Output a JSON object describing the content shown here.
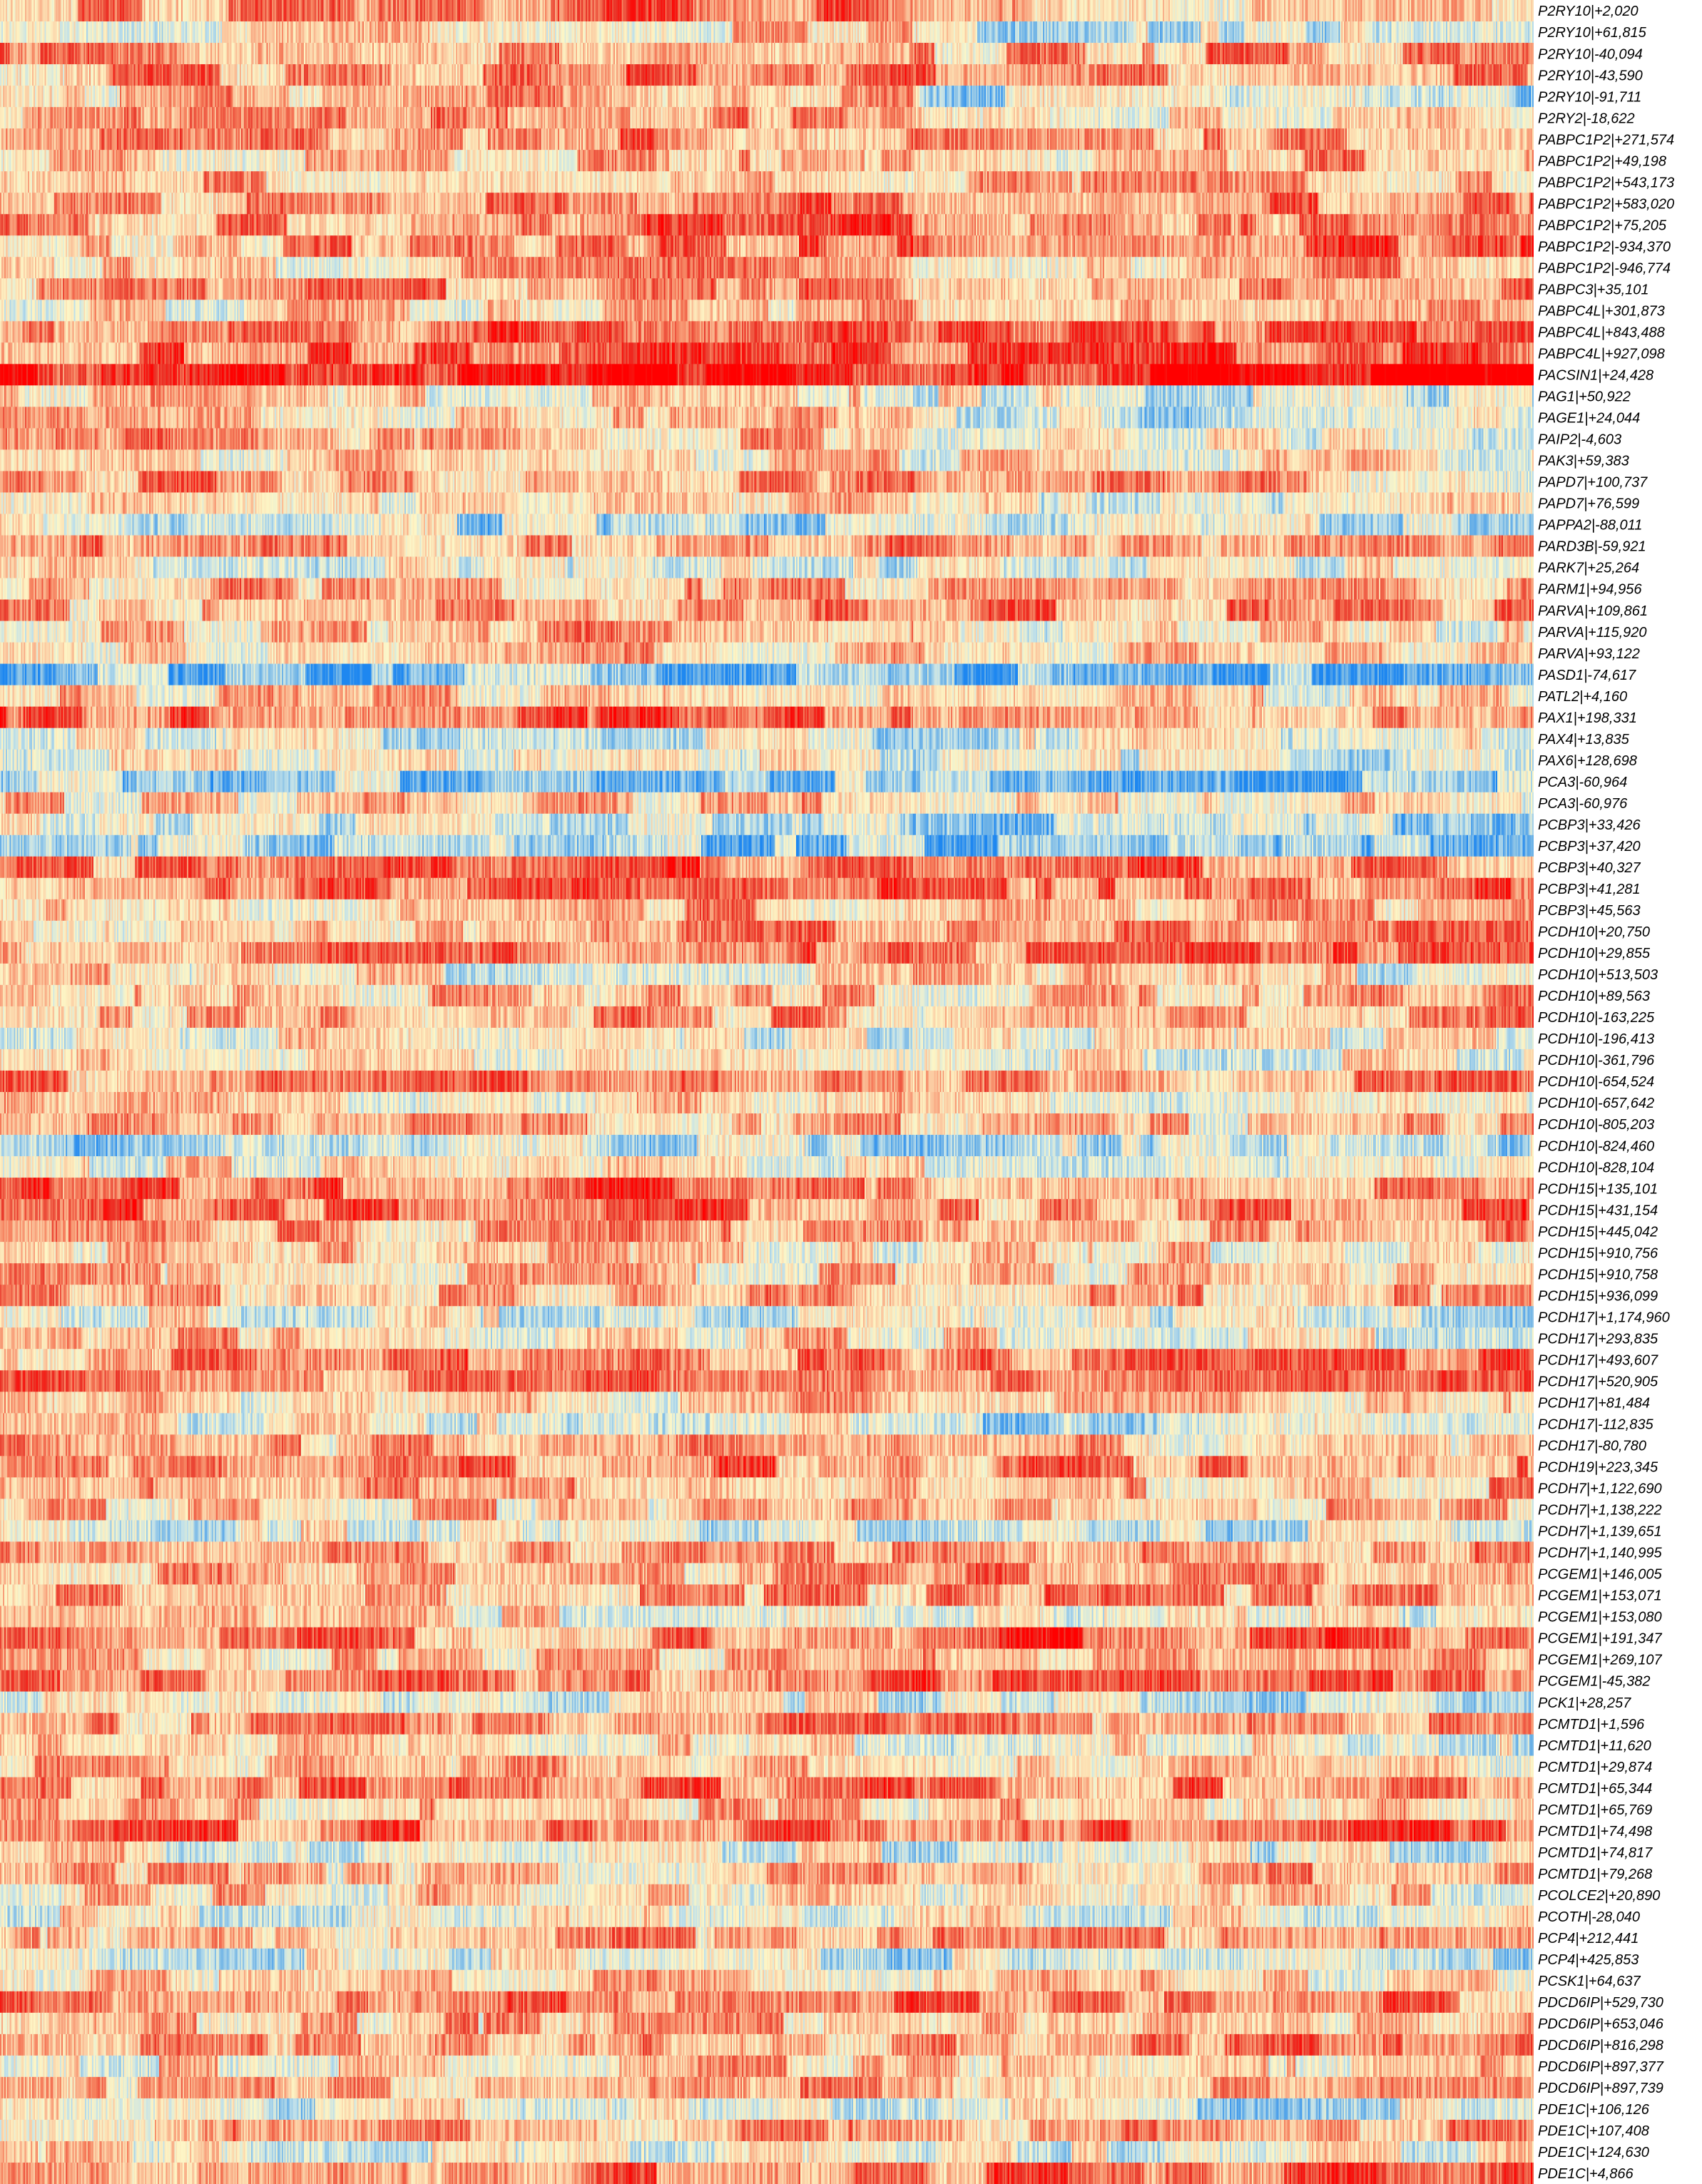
{
  "chart_data": {
    "type": "heatmap",
    "title": "",
    "xlabel": "",
    "ylabel": "",
    "colormap": [
      "#1e87f0",
      "#74b6e6",
      "#bfe0ea",
      "#fdf6c6",
      "#fbc9a0",
      "#f6805e",
      "#e9392c",
      "#ff0000"
    ],
    "value_range": [
      -1,
      1
    ],
    "n_columns": 1100,
    "column_groups": [
      0.5955,
      0.4045
    ],
    "rows": [
      {
        "label": "P2RY10|+2,020",
        "profile": [
          0.3,
          0.4,
          0.2,
          -0.1
        ]
      },
      {
        "label": "P2RY10|+61,815",
        "profile": [
          -0.2,
          0.1,
          -0.3,
          -0.2
        ]
      },
      {
        "label": "P2RY10|-40,094",
        "profile": [
          0.3,
          0.2,
          0.2,
          0.3
        ]
      },
      {
        "label": "P2RY10|-43,590",
        "profile": [
          0.2,
          0.5,
          0.3,
          0.4
        ]
      },
      {
        "label": "P2RY10|-91,711",
        "profile": [
          0.1,
          0.2,
          -0.3,
          -0.4
        ]
      },
      {
        "label": "P2RY2|-18,622",
        "profile": [
          0.2,
          0.3,
          0.1,
          -0.1
        ]
      },
      {
        "label": "PABPC1P2|+271,574",
        "profile": [
          0.2,
          0.4,
          0.3,
          0.4
        ]
      },
      {
        "label": "PABPC1P2|+49,198",
        "profile": [
          0.0,
          0.3,
          0.0,
          0.3
        ]
      },
      {
        "label": "PABPC1P2|+543,173",
        "profile": [
          0.2,
          0.1,
          0.2,
          0.2
        ]
      },
      {
        "label": "PABPC1P2|+583,020",
        "profile": [
          0.3,
          0.4,
          0.3,
          0.4
        ]
      },
      {
        "label": "PABPC1P2|+75,205",
        "profile": [
          0.2,
          0.6,
          0.2,
          0.5
        ]
      },
      {
        "label": "PABPC1P2|-934,370",
        "profile": [
          0.1,
          0.5,
          0.3,
          0.6
        ]
      },
      {
        "label": "PABPC1P2|-946,774",
        "profile": [
          0.0,
          0.3,
          0.0,
          0.2
        ]
      },
      {
        "label": "PABPC3|+35,101",
        "profile": [
          0.2,
          0.4,
          0.2,
          0.4
        ]
      },
      {
        "label": "PABPC4L|+301,873",
        "profile": [
          -0.1,
          0.2,
          0.0,
          0.2
        ]
      },
      {
        "label": "PABPC4L|+843,488",
        "profile": [
          0.4,
          0.5,
          0.5,
          0.6
        ]
      },
      {
        "label": "PABPC4L|+927,098",
        "profile": [
          0.4,
          0.6,
          0.5,
          0.7
        ]
      },
      {
        "label": "PACSIN1|+24,428",
        "profile": [
          0.8,
          0.9,
          0.8,
          0.9
        ]
      },
      {
        "label": "PAG1|+50,922",
        "profile": [
          0.1,
          0.0,
          -0.2,
          -0.3
        ]
      },
      {
        "label": "PAGE1|+24,044",
        "profile": [
          0.1,
          0.1,
          -0.3,
          -0.3
        ]
      },
      {
        "label": "PAIP2|-4,603",
        "profile": [
          0.3,
          0.1,
          0.0,
          -0.2
        ]
      },
      {
        "label": "PAK3|+59,383",
        "profile": [
          0.1,
          0.0,
          0.0,
          0.0
        ]
      },
      {
        "label": "PAPD7|+100,737",
        "profile": [
          0.3,
          0.2,
          0.2,
          0.1
        ]
      },
      {
        "label": "PAPD7|+76,599",
        "profile": [
          0.0,
          0.1,
          -0.1,
          -0.1
        ]
      },
      {
        "label": "PAPPA2|-88,011",
        "profile": [
          -0.3,
          -0.4,
          -0.4,
          -0.3
        ]
      },
      {
        "label": "PARD3B|-59,921",
        "profile": [
          0.3,
          0.3,
          0.2,
          0.3
        ]
      },
      {
        "label": "PARK7|+25,264",
        "profile": [
          -0.1,
          -0.2,
          0.0,
          -0.2
        ]
      },
      {
        "label": "PARM1|+94,956",
        "profile": [
          0.2,
          0.2,
          0.2,
          0.2
        ]
      },
      {
        "label": "PARVA|+109,861",
        "profile": [
          0.2,
          0.3,
          0.3,
          0.3
        ]
      },
      {
        "label": "PARVA|+115,920",
        "profile": [
          0.1,
          0.2,
          -0.2,
          0.0
        ]
      },
      {
        "label": "PARVA|+93,122",
        "profile": [
          0.1,
          0.1,
          0.1,
          0.1
        ]
      },
      {
        "label": "PASD1|-74,617",
        "profile": [
          -0.6,
          -0.6,
          -0.6,
          -0.7
        ]
      },
      {
        "label": "PATL2|+4,160",
        "profile": [
          0.1,
          0.1,
          0.0,
          0.0
        ]
      },
      {
        "label": "PAX1|+198,331",
        "profile": [
          0.6,
          0.5,
          0.2,
          0.3
        ]
      },
      {
        "label": "PAX4|+13,835",
        "profile": [
          -0.1,
          -0.3,
          -0.2,
          -0.2
        ]
      },
      {
        "label": "PAX6|+128,698",
        "profile": [
          -0.2,
          -0.2,
          -0.3,
          -0.4
        ]
      },
      {
        "label": "PCA3|-60,964",
        "profile": [
          -0.5,
          -0.5,
          -0.6,
          -0.6
        ]
      },
      {
        "label": "PCA3|-60,976",
        "profile": [
          0.1,
          0.1,
          0.0,
          0.0
        ]
      },
      {
        "label": "PCBP3|+33,426",
        "profile": [
          -0.3,
          -0.3,
          -0.4,
          -0.5
        ]
      },
      {
        "label": "PCBP3|+37,420",
        "profile": [
          -0.5,
          -0.5,
          -0.6,
          -0.6
        ]
      },
      {
        "label": "PCBP3|+40,327",
        "profile": [
          0.3,
          0.5,
          0.4,
          0.4
        ]
      },
      {
        "label": "PCBP3|+41,281",
        "profile": [
          0.4,
          0.5,
          0.5,
          0.4
        ]
      },
      {
        "label": "PCBP3|+45,563",
        "profile": [
          0.1,
          0.2,
          0.1,
          0.1
        ]
      },
      {
        "label": "PCDH10|+20,750",
        "profile": [
          0.1,
          0.3,
          0.2,
          0.3
        ]
      },
      {
        "label": "PCDH10|+29,855",
        "profile": [
          0.3,
          0.5,
          0.4,
          0.5
        ]
      },
      {
        "label": "PCDH10|+513,503",
        "profile": [
          0.0,
          -0.2,
          0.1,
          -0.2
        ]
      },
      {
        "label": "PCDH10|+89,563",
        "profile": [
          0.1,
          0.2,
          0.1,
          0.2
        ]
      },
      {
        "label": "PCDH10|-163,225",
        "profile": [
          0.1,
          0.3,
          0.1,
          0.4
        ]
      },
      {
        "label": "PCDH10|-196,413",
        "profile": [
          0.0,
          -0.3,
          0.0,
          -0.2
        ]
      },
      {
        "label": "PCDH10|-361,796",
        "profile": [
          0.1,
          -0.1,
          0.0,
          -0.2
        ]
      },
      {
        "label": "PCDH10|-654,524",
        "profile": [
          0.3,
          0.4,
          0.3,
          0.3
        ]
      },
      {
        "label": "PCDH10|-657,642",
        "profile": [
          0.0,
          0.0,
          -0.1,
          0.0
        ]
      },
      {
        "label": "PCDH10|-805,203",
        "profile": [
          0.2,
          0.2,
          0.1,
          0.1
        ]
      },
      {
        "label": "PCDH10|-824,460",
        "profile": [
          -0.4,
          -0.4,
          -0.4,
          -0.4
        ]
      },
      {
        "label": "PCDH10|-828,104",
        "profile": [
          0.0,
          -0.1,
          -0.1,
          -0.2
        ]
      },
      {
        "label": "PCDH15|+135,101",
        "profile": [
          0.5,
          0.5,
          0.2,
          0.3
        ]
      },
      {
        "label": "PCDH15|+431,154",
        "profile": [
          0.5,
          0.4,
          0.3,
          0.4
        ]
      },
      {
        "label": "PCDH15|+445,042",
        "profile": [
          0.2,
          0.2,
          0.1,
          0.2
        ]
      },
      {
        "label": "PCDH15|+910,756",
        "profile": [
          0.1,
          0.0,
          0.0,
          0.0
        ]
      },
      {
        "label": "PCDH15|+910,758",
        "profile": [
          0.1,
          0.1,
          0.1,
          0.1
        ]
      },
      {
        "label": "PCDH15|+936,099",
        "profile": [
          0.2,
          0.2,
          0.2,
          0.2
        ]
      },
      {
        "label": "PCDH17|+1,174,960",
        "profile": [
          -0.1,
          -0.2,
          -0.3,
          -0.3
        ]
      },
      {
        "label": "PCDH17|+293,835",
        "profile": [
          0.1,
          0.0,
          0.0,
          -0.1
        ]
      },
      {
        "label": "PCDH17|+493,607",
        "profile": [
          0.2,
          0.5,
          0.3,
          0.5
        ]
      },
      {
        "label": "PCDH17|+520,905",
        "profile": [
          0.3,
          0.5,
          0.4,
          0.5
        ]
      },
      {
        "label": "PCDH17|+81,484",
        "profile": [
          0.0,
          0.1,
          0.0,
          0.0
        ]
      },
      {
        "label": "PCDH17|-112,835",
        "profile": [
          -0.1,
          -0.2,
          -0.3,
          -0.4
        ]
      },
      {
        "label": "PCDH17|-80,780",
        "profile": [
          0.2,
          0.2,
          0.1,
          0.1
        ]
      },
      {
        "label": "PCDH19|+223,345",
        "profile": [
          0.3,
          0.4,
          0.3,
          0.4
        ]
      },
      {
        "label": "PCDH7|+1,122,690",
        "profile": [
          0.2,
          0.2,
          0.2,
          0.2
        ]
      },
      {
        "label": "PCDH7|+1,138,222",
        "profile": [
          0.1,
          0.1,
          0.0,
          0.1
        ]
      },
      {
        "label": "PCDH7|+1,139,651",
        "profile": [
          -0.2,
          -0.3,
          -0.3,
          -0.3
        ]
      },
      {
        "label": "PCDH7|+1,140,995",
        "profile": [
          0.2,
          0.3,
          0.2,
          0.3
        ]
      },
      {
        "label": "PCGEM1|+146,005",
        "profile": [
          0.1,
          0.2,
          0.4,
          0.3
        ]
      },
      {
        "label": "PCGEM1|+153,071",
        "profile": [
          0.2,
          0.2,
          0.3,
          0.3
        ]
      },
      {
        "label": "PCGEM1|+153,080",
        "profile": [
          0.0,
          -0.1,
          0.0,
          -0.2
        ]
      },
      {
        "label": "PCGEM1|+191,347",
        "profile": [
          0.3,
          0.3,
          0.6,
          0.5
        ]
      },
      {
        "label": "PCGEM1|+269,107",
        "profile": [
          0.0,
          0.1,
          0.2,
          0.2
        ]
      },
      {
        "label": "PCGEM1|-45,382",
        "profile": [
          0.3,
          0.3,
          0.5,
          0.5
        ]
      },
      {
        "label": "PCK1|+28,257",
        "profile": [
          -0.1,
          -0.2,
          -0.2,
          -0.3
        ]
      },
      {
        "label": "PCMTD1|+1,596",
        "profile": [
          0.2,
          0.3,
          0.3,
          0.3
        ]
      },
      {
        "label": "PCMTD1|+11,620",
        "profile": [
          0.0,
          -0.1,
          -0.1,
          -0.2
        ]
      },
      {
        "label": "PCMTD1|+29,874",
        "profile": [
          0.1,
          0.1,
          0.1,
          0.1
        ]
      },
      {
        "label": "PCMTD1|+65,344",
        "profile": [
          0.3,
          0.5,
          0.3,
          0.5
        ]
      },
      {
        "label": "PCMTD1|+65,769",
        "profile": [
          0.1,
          0.2,
          0.1,
          0.2
        ]
      },
      {
        "label": "PCMTD1|+74,498",
        "profile": [
          0.4,
          0.5,
          0.4,
          0.5
        ]
      },
      {
        "label": "PCMTD1|+74,817",
        "profile": [
          -0.1,
          -0.2,
          -0.2,
          -0.2
        ]
      },
      {
        "label": "PCMTD1|+79,268",
        "profile": [
          0.1,
          0.1,
          0.1,
          0.2
        ]
      },
      {
        "label": "PCOLCE2|+20,890",
        "profile": [
          0.1,
          0.0,
          0.0,
          0.0
        ]
      },
      {
        "label": "PCOTH|-28,040",
        "profile": [
          -0.1,
          -0.2,
          -0.1,
          -0.2
        ]
      },
      {
        "label": "PCP4|+212,441",
        "profile": [
          0.2,
          0.2,
          0.2,
          0.2
        ]
      },
      {
        "label": "PCP4|+425,853",
        "profile": [
          -0.2,
          -0.3,
          -0.3,
          -0.3
        ]
      },
      {
        "label": "PCSK1|+64,637",
        "profile": [
          0.1,
          0.1,
          0.0,
          0.1
        ]
      },
      {
        "label": "PDCD6IP|+529,730",
        "profile": [
          0.3,
          0.4,
          0.3,
          0.4
        ]
      },
      {
        "label": "PDCD6IP|+653,046",
        "profile": [
          0.1,
          0.2,
          0.1,
          0.2
        ]
      },
      {
        "label": "PDCD6IP|+816,298",
        "profile": [
          0.2,
          0.3,
          0.3,
          0.4
        ]
      },
      {
        "label": "PDCD6IP|+897,377",
        "profile": [
          0.0,
          0.1,
          0.0,
          0.1
        ]
      },
      {
        "label": "PDCD6IP|+897,739",
        "profile": [
          0.1,
          0.2,
          0.1,
          0.2
        ]
      },
      {
        "label": "PDE1C|+106,126",
        "profile": [
          -0.2,
          -0.2,
          -0.3,
          -0.3
        ]
      },
      {
        "label": "PDE1C|+107,408",
        "profile": [
          0.2,
          0.3,
          0.2,
          0.3
        ]
      },
      {
        "label": "PDE1C|+124,630",
        "profile": [
          -0.1,
          -0.1,
          -0.2,
          -0.2
        ]
      },
      {
        "label": "PDE1C|+4,866",
        "profile": [
          0.3,
          0.4,
          0.4,
          0.5
        ]
      }
    ]
  }
}
